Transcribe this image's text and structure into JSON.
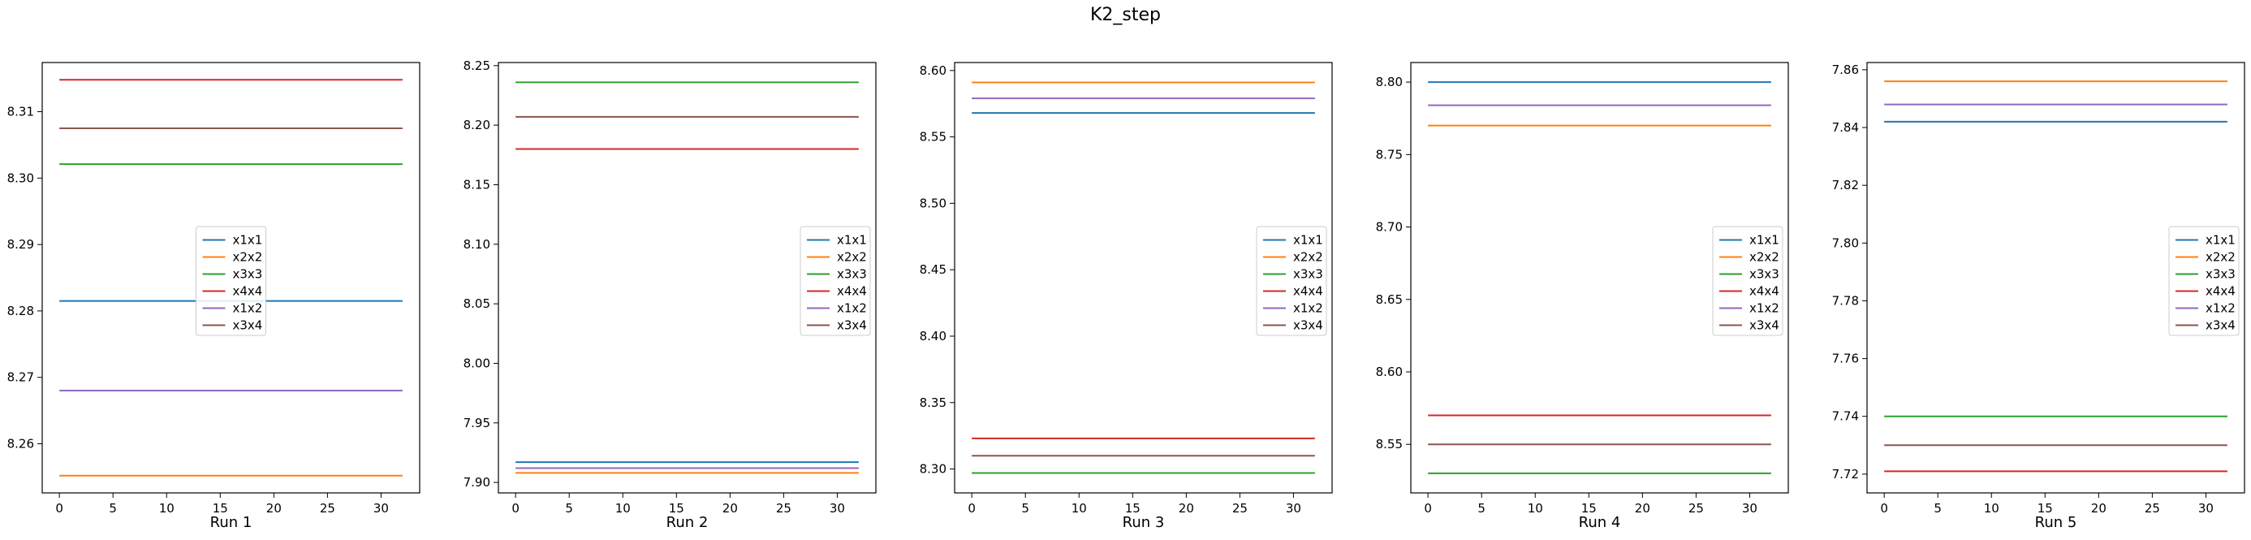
{
  "figure": {
    "title": "K2_step"
  },
  "legend_labels": [
    "x1x1",
    "x2x2",
    "x3x3",
    "x4x4",
    "x1x2",
    "x3x4"
  ],
  "series_colors": {
    "x1x1": "#1f77b4",
    "x2x2": "#ff7f0e",
    "x3x3": "#2ca02c",
    "x4x4": "#d62728",
    "x1x2": "#9467bd",
    "x3x4": "#8c564b"
  },
  "chart_data": [
    {
      "type": "line",
      "xlabel": "Run 1",
      "x_range": [
        0,
        32
      ],
      "xlim": [
        -1.6,
        33.6
      ],
      "ylim": [
        8.2526,
        8.3174
      ],
      "xticks": [
        0,
        5,
        10,
        15,
        20,
        25,
        30
      ],
      "yticks": [
        "8.26",
        "8.27",
        "8.28",
        "8.29",
        "8.30",
        "8.31"
      ],
      "legend_position": "center",
      "series": [
        {
          "name": "x1x1",
          "value": 8.2815
        },
        {
          "name": "x2x2",
          "value": 8.2552
        },
        {
          "name": "x3x3",
          "value": 8.3021
        },
        {
          "name": "x4x4",
          "value": 8.3148
        },
        {
          "name": "x1x2",
          "value": 8.268
        },
        {
          "name": "x3x4",
          "value": 8.3075
        }
      ]
    },
    {
      "type": "line",
      "xlabel": "Run 2",
      "x_range": [
        0,
        32
      ],
      "xlim": [
        -1.6,
        33.6
      ],
      "ylim": [
        7.8912,
        8.2526
      ],
      "xticks": [
        0,
        5,
        10,
        15,
        20,
        25,
        30
      ],
      "yticks": [
        "7.90",
        "7.95",
        "8.00",
        "8.05",
        "8.10",
        "8.15",
        "8.20",
        "8.25"
      ],
      "legend_position": "center right",
      "series": [
        {
          "name": "x1x1",
          "value": 7.917
        },
        {
          "name": "x2x2",
          "value": 7.908
        },
        {
          "name": "x3x3",
          "value": 8.236
        },
        {
          "name": "x4x4",
          "value": 8.18
        },
        {
          "name": "x1x2",
          "value": 7.912
        },
        {
          "name": "x3x4",
          "value": 8.207
        }
      ]
    },
    {
      "type": "line",
      "xlabel": "Run 3",
      "x_range": [
        0,
        32
      ],
      "xlim": [
        -1.6,
        33.6
      ],
      "ylim": [
        8.282,
        8.606
      ],
      "xticks": [
        0,
        5,
        10,
        15,
        20,
        25,
        30
      ],
      "yticks": [
        "8.30",
        "8.35",
        "8.40",
        "8.45",
        "8.50",
        "8.55",
        "8.60"
      ],
      "legend_position": "center right",
      "series": [
        {
          "name": "x1x1",
          "value": 8.568
        },
        {
          "name": "x2x2",
          "value": 8.591
        },
        {
          "name": "x3x3",
          "value": 8.297
        },
        {
          "name": "x4x4",
          "value": 8.323
        },
        {
          "name": "x1x2",
          "value": 8.579
        },
        {
          "name": "x3x4",
          "value": 8.31
        }
      ]
    },
    {
      "type": "line",
      "xlabel": "Run 4",
      "x_range": [
        0,
        32
      ],
      "xlim": [
        -1.6,
        33.6
      ],
      "ylim": [
        8.5165,
        8.8135
      ],
      "xticks": [
        0,
        5,
        10,
        15,
        20,
        25,
        30
      ],
      "yticks": [
        "8.55",
        "8.60",
        "8.65",
        "8.70",
        "8.75",
        "8.80"
      ],
      "legend_position": "center right",
      "series": [
        {
          "name": "x1x1",
          "value": 8.8
        },
        {
          "name": "x2x2",
          "value": 8.77
        },
        {
          "name": "x3x3",
          "value": 8.53
        },
        {
          "name": "x4x4",
          "value": 8.57
        },
        {
          "name": "x1x2",
          "value": 8.784
        },
        {
          "name": "x3x4",
          "value": 8.55
        }
      ]
    },
    {
      "type": "line",
      "xlabel": "Run 5",
      "x_range": [
        0,
        32
      ],
      "xlim": [
        -1.6,
        33.6
      ],
      "ylim": [
        7.7135,
        7.8625
      ],
      "xticks": [
        0,
        5,
        10,
        15,
        20,
        25,
        30
      ],
      "yticks": [
        "7.72",
        "7.74",
        "7.76",
        "7.78",
        "7.80",
        "7.82",
        "7.84",
        "7.86"
      ],
      "legend_position": "center right",
      "series": [
        {
          "name": "x1x1",
          "value": 7.842
        },
        {
          "name": "x2x2",
          "value": 7.856
        },
        {
          "name": "x3x3",
          "value": 7.74
        },
        {
          "name": "x4x4",
          "value": 7.721
        },
        {
          "name": "x1x2",
          "value": 7.848
        },
        {
          "name": "x3x4",
          "value": 7.73
        }
      ]
    }
  ]
}
